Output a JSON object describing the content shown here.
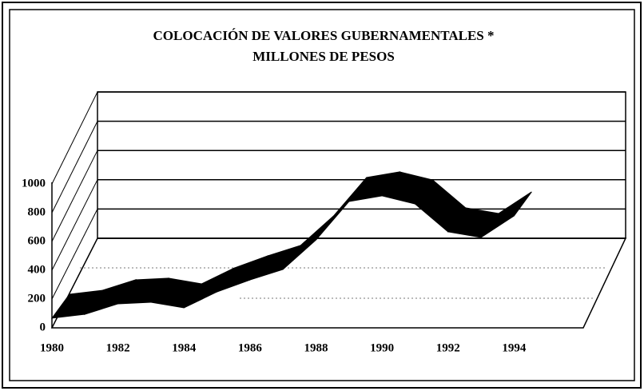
{
  "chart_data": {
    "type": "ribbon3d",
    "title": "COLOCACIÓN DE VALORES GUBERNAMENTALES *",
    "subtitle": "MILLONES DE PESOS",
    "x": [
      1980,
      1981,
      1982,
      1983,
      1984,
      1985,
      1986,
      1987,
      1988,
      1989,
      1990,
      1991,
      1992,
      1993,
      1994
    ],
    "values": [
      67,
      94,
      167,
      178,
      139,
      250,
      333,
      406,
      611,
      878,
      917,
      861,
      667,
      628,
      778
    ],
    "color": "#000000",
    "xlim": [
      1980,
      1996
    ],
    "xticks": [
      1980,
      1982,
      1984,
      1986,
      1988,
      1990,
      1992,
      1994
    ],
    "ylim": [
      0,
      1000
    ],
    "yticks": [
      0,
      200,
      400,
      600,
      800,
      1000
    ],
    "grid": true
  }
}
